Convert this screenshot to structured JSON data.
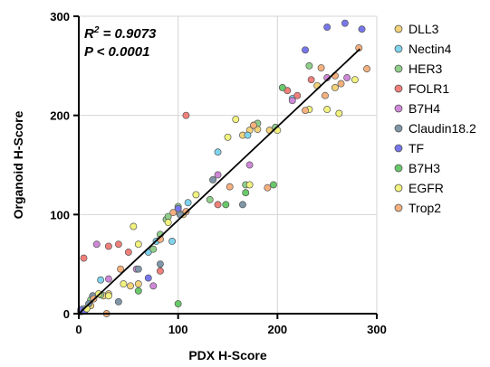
{
  "chart_data": {
    "type": "scatter",
    "title": "",
    "xlabel": "PDX H-Score",
    "ylabel": "Organoid H-Score",
    "xlim": [
      0,
      300
    ],
    "ylim": [
      0,
      300
    ],
    "xticks": [
      0,
      100,
      200,
      300
    ],
    "yticks": [
      0,
      100,
      200,
      300
    ],
    "grid": true,
    "legend_position": "right",
    "stats": {
      "r2_prefix": "R",
      "r2_sup": "2",
      "r2_value": " = 0.9073",
      "p_text": "P < 0.0001"
    },
    "fit_line": {
      "x": [
        0,
        283
      ],
      "y": [
        0,
        267
      ]
    },
    "series": [
      {
        "name": "DLL3",
        "color": "#f2d27a",
        "points": [
          [
            2,
            2
          ],
          [
            12,
            8
          ],
          [
            25,
            18
          ],
          [
            30,
            20
          ],
          [
            52,
            28
          ],
          [
            60,
            30
          ],
          [
            100,
            103
          ],
          [
            105,
            100
          ],
          [
            165,
            180
          ],
          [
            172,
            185
          ],
          [
            180,
            186
          ],
          [
            192,
            185
          ],
          [
            240,
            230
          ],
          [
            258,
            228
          ]
        ]
      },
      {
        "name": "Nectin4",
        "color": "#7fd3ec",
        "points": [
          [
            5,
            5
          ],
          [
            22,
            34
          ],
          [
            70,
            62
          ],
          [
            78,
            73
          ],
          [
            94,
            73
          ],
          [
            110,
            112
          ],
          [
            140,
            163
          ],
          [
            170,
            180
          ],
          [
            176,
            190
          ],
          [
            215,
            217
          ]
        ]
      },
      {
        "name": "HER3",
        "color": "#8fcf8a",
        "points": [
          [
            12,
            14
          ],
          [
            22,
            19
          ],
          [
            75,
            65
          ],
          [
            82,
            80
          ],
          [
            88,
            95
          ],
          [
            90,
            98
          ],
          [
            100,
            108
          ],
          [
            132,
            115
          ],
          [
            168,
            130
          ],
          [
            180,
            192
          ],
          [
            198,
            188
          ],
          [
            232,
            250
          ]
        ]
      },
      {
        "name": "FOLR1",
        "color": "#f07f7a",
        "points": [
          [
            5,
            56
          ],
          [
            30,
            68
          ],
          [
            40,
            70
          ],
          [
            50,
            62
          ],
          [
            82,
            43
          ],
          [
            108,
            200
          ],
          [
            140,
            110
          ],
          [
            210,
            225
          ],
          [
            220,
            220
          ],
          [
            234,
            236
          ]
        ]
      },
      {
        "name": "B7H4",
        "color": "#cf88d8",
        "points": [
          [
            18,
            70
          ],
          [
            30,
            35
          ],
          [
            58,
            45
          ],
          [
            75,
            28
          ],
          [
            140,
            140
          ],
          [
            172,
            150
          ],
          [
            215,
            215
          ],
          [
            250,
            238
          ],
          [
            270,
            238
          ]
        ]
      },
      {
        "name": "Claudin18.2",
        "color": "#7f97a8",
        "points": [
          [
            10,
            10
          ],
          [
            14,
            18
          ],
          [
            40,
            12
          ],
          [
            60,
            45
          ],
          [
            82,
            50
          ],
          [
            102,
            100
          ],
          [
            135,
            135
          ],
          [
            165,
            110
          ]
        ]
      },
      {
        "name": "TF",
        "color": "#7777ec",
        "points": [
          [
            2,
            4
          ],
          [
            6,
            3
          ],
          [
            70,
            36
          ],
          [
            100,
            106
          ],
          [
            228,
            266
          ],
          [
            250,
            289
          ],
          [
            268,
            293
          ],
          [
            285,
            287
          ]
        ]
      },
      {
        "name": "B7H3",
        "color": "#68c86a",
        "points": [
          [
            60,
            23
          ],
          [
            100,
            10
          ],
          [
            148,
            110
          ],
          [
            168,
            122
          ],
          [
            196,
            130
          ],
          [
            205,
            228
          ]
        ]
      },
      {
        "name": "EGFR",
        "color": "#f2f27e",
        "points": [
          [
            8,
            5
          ],
          [
            20,
            20
          ],
          [
            30,
            18
          ],
          [
            45,
            30
          ],
          [
            55,
            88
          ],
          [
            60,
            70
          ],
          [
            90,
            92
          ],
          [
            118,
            120
          ],
          [
            150,
            178
          ],
          [
            158,
            196
          ],
          [
            172,
            130
          ],
          [
            200,
            185
          ],
          [
            232,
            206
          ],
          [
            250,
            206
          ],
          [
            262,
            202
          ],
          [
            278,
            236
          ]
        ]
      },
      {
        "name": "Trop2",
        "color": "#f4b07e",
        "points": [
          [
            15,
            15
          ],
          [
            28,
            0
          ],
          [
            42,
            45
          ],
          [
            82,
            75
          ],
          [
            95,
            102
          ],
          [
            108,
            103
          ],
          [
            152,
            128
          ],
          [
            176,
            190
          ],
          [
            190,
            127
          ],
          [
            228,
            205
          ],
          [
            244,
            248
          ],
          [
            248,
            220
          ],
          [
            258,
            240
          ],
          [
            264,
            232
          ],
          [
            282,
            268
          ],
          [
            290,
            247
          ]
        ]
      }
    ]
  }
}
